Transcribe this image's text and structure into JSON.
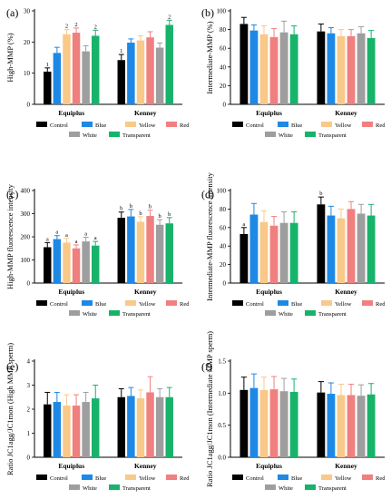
{
  "colors": {
    "Control": "#000000",
    "Blue": "#1e88e5",
    "Yellow": "#f9c98a",
    "Red": "#f08080",
    "White": "#9e9e9e",
    "Transparent": "#18b36b"
  },
  "legend": [
    "Control",
    "Blue",
    "Yellow",
    "Red",
    "White",
    "Transparent"
  ],
  "chart_data": [
    {
      "panel": "(a)",
      "type": "bar",
      "ylabel": "High-MMP (%)",
      "ylim": [
        0,
        30
      ],
      "yticks": [
        "0",
        "10",
        "20",
        "30"
      ],
      "ytickvals": [
        0,
        10,
        20,
        30
      ],
      "categories": [
        "Equiplus",
        "Kenney"
      ],
      "series": [
        {
          "name": "Control",
          "values": [
            10.5,
            14.2
          ],
          "err": [
            1.2,
            1.8
          ],
          "labels": [
            "1",
            "1"
          ]
        },
        {
          "name": "Blue",
          "values": [
            16.5,
            19.8
          ],
          "err": [
            1.8,
            1.2
          ],
          "labels": [
            "",
            ""
          ]
        },
        {
          "name": "Yellow",
          "values": [
            22.5,
            20.5
          ],
          "err": [
            1.5,
            1.5
          ],
          "labels": [
            "2",
            ""
          ]
        },
        {
          "name": "Red",
          "values": [
            23.0,
            21.5
          ],
          "err": [
            1.5,
            1.8
          ],
          "labels": [
            "2",
            ""
          ]
        },
        {
          "name": "White",
          "values": [
            17.0,
            18.2
          ],
          "err": [
            1.8,
            1.5
          ],
          "labels": [
            "",
            ""
          ]
        },
        {
          "name": "Transparent",
          "values": [
            22.0,
            25.5
          ],
          "err": [
            1.8,
            1.5
          ],
          "labels": [
            "2",
            "2"
          ]
        }
      ]
    },
    {
      "panel": "(b)",
      "type": "bar",
      "ylabel": "Intermediate-MMP (%)",
      "ylim": [
        0,
        100
      ],
      "yticks": [
        "0",
        "20",
        "40",
        "60",
        "80",
        "100"
      ],
      "ytickvals": [
        0,
        20,
        40,
        60,
        80,
        100
      ],
      "categories": [
        "Equiplus",
        "Kenney"
      ],
      "series": [
        {
          "name": "Control",
          "values": [
            86,
            78
          ],
          "err": [
            7,
            8
          ],
          "labels": [
            "",
            ""
          ]
        },
        {
          "name": "Blue",
          "values": [
            79,
            76
          ],
          "err": [
            6,
            6
          ],
          "labels": [
            "",
            ""
          ]
        },
        {
          "name": "Yellow",
          "values": [
            75,
            73
          ],
          "err": [
            9,
            7
          ],
          "labels": [
            "",
            ""
          ]
        },
        {
          "name": "Red",
          "values": [
            72,
            73
          ],
          "err": [
            9,
            7
          ],
          "labels": [
            "",
            ""
          ]
        },
        {
          "name": "White",
          "values": [
            77,
            76
          ],
          "err": [
            12,
            7
          ],
          "labels": [
            "",
            ""
          ]
        },
        {
          "name": "Transparent",
          "values": [
            75,
            71
          ],
          "err": [
            9,
            8
          ],
          "labels": [
            "",
            ""
          ]
        }
      ]
    },
    {
      "panel": "(c)",
      "type": "bar",
      "ylabel": "High-MMP fluorescence intensity",
      "ylim": [
        0,
        400
      ],
      "yticks": [
        "0",
        "100",
        "200",
        "300",
        "400"
      ],
      "ytickvals": [
        0,
        100,
        200,
        300,
        400
      ],
      "categories": [
        "Equiplus",
        "Kenney"
      ],
      "series": [
        {
          "name": "Control",
          "values": [
            155,
            282
          ],
          "err": [
            20,
            25
          ],
          "labels": [
            "a",
            "b"
          ]
        },
        {
          "name": "Blue",
          "values": [
            190,
            288
          ],
          "err": [
            15,
            30
          ],
          "labels": [
            "a",
            "b"
          ]
        },
        {
          "name": "Yellow",
          "values": [
            175,
            265
          ],
          "err": [
            18,
            22
          ],
          "labels": [
            "a",
            "b"
          ]
        },
        {
          "name": "Red",
          "values": [
            150,
            290
          ],
          "err": [
            15,
            25
          ],
          "labels": [
            "a",
            "b"
          ]
        },
        {
          "name": "White",
          "values": [
            180,
            252
          ],
          "err": [
            18,
            22
          ],
          "labels": [
            "a",
            "b"
          ]
        },
        {
          "name": "Transparent",
          "values": [
            162,
            258
          ],
          "err": [
            18,
            25
          ],
          "labels": [
            "a",
            "b"
          ]
        }
      ]
    },
    {
      "panel": "(d)",
      "type": "bar",
      "ylabel": "Intermediate-MMP fluorescence intensity",
      "ylim": [
        0,
        100
      ],
      "yticks": [
        "0",
        "20",
        "40",
        "60",
        "80",
        "100"
      ],
      "ytickvals": [
        0,
        20,
        40,
        60,
        80,
        100
      ],
      "categories": [
        "Equiplus",
        "Kenney"
      ],
      "series": [
        {
          "name": "Control",
          "values": [
            53,
            85
          ],
          "err": [
            7,
            8
          ],
          "labels": [
            "a",
            "b"
          ]
        },
        {
          "name": "Blue",
          "values": [
            74,
            73
          ],
          "err": [
            12,
            10
          ],
          "labels": [
            "",
            ""
          ]
        },
        {
          "name": "Yellow",
          "values": [
            66,
            70
          ],
          "err": [
            12,
            10
          ],
          "labels": [
            "",
            ""
          ]
        },
        {
          "name": "Red",
          "values": [
            62,
            80
          ],
          "err": [
            10,
            8
          ],
          "labels": [
            "",
            ""
          ]
        },
        {
          "name": "White",
          "values": [
            65,
            75
          ],
          "err": [
            12,
            10
          ],
          "labels": [
            "",
            ""
          ]
        },
        {
          "name": "Transparent",
          "values": [
            65,
            73
          ],
          "err": [
            12,
            12
          ],
          "labels": [
            "",
            ""
          ]
        }
      ]
    },
    {
      "panel": "(e)",
      "type": "bar",
      "ylabel": "Ratio JC1agg/JC1mon (High MMP sperm)",
      "ylim": [
        0,
        4
      ],
      "yticks": [
        "0",
        "1",
        "2",
        "3",
        "4"
      ],
      "ytickvals": [
        0,
        1,
        2,
        3,
        4
      ],
      "categories": [
        "Equiplus",
        "Kenney"
      ],
      "series": [
        {
          "name": "Control",
          "values": [
            2.2,
            2.5
          ],
          "err": [
            0.5,
            0.35
          ],
          "labels": [
            "",
            ""
          ]
        },
        {
          "name": "Blue",
          "values": [
            2.3,
            2.55
          ],
          "err": [
            0.4,
            0.35
          ],
          "labels": [
            "",
            ""
          ]
        },
        {
          "name": "Yellow",
          "values": [
            2.15,
            2.45
          ],
          "err": [
            0.45,
            0.35
          ],
          "labels": [
            "",
            ""
          ]
        },
        {
          "name": "Red",
          "values": [
            2.15,
            2.7
          ],
          "err": [
            0.45,
            0.65
          ],
          "labels": [
            "",
            ""
          ]
        },
        {
          "name": "White",
          "values": [
            2.3,
            2.5
          ],
          "err": [
            0.4,
            0.35
          ],
          "labels": [
            "",
            ""
          ]
        },
        {
          "name": "Transparent",
          "values": [
            2.45,
            2.5
          ],
          "err": [
            0.55,
            0.4
          ],
          "labels": [
            "",
            ""
          ]
        }
      ]
    },
    {
      "panel": "(f)",
      "type": "bar",
      "ylabel": "Ratio JC1agg/JC1mon (Intermediate MMP sperm)",
      "ylim": [
        0,
        1.5
      ],
      "yticks": [
        "0.0",
        "0.5",
        "1.0",
        "1.5"
      ],
      "ytickvals": [
        0,
        0.5,
        1.0,
        1.5
      ],
      "categories": [
        "Equiplus",
        "Kenney"
      ],
      "series": [
        {
          "name": "Control",
          "values": [
            1.05,
            1.01
          ],
          "err": [
            0.2,
            0.17
          ],
          "labels": [
            "",
            ""
          ]
        },
        {
          "name": "Blue",
          "values": [
            1.08,
            0.99
          ],
          "err": [
            0.22,
            0.17
          ],
          "labels": [
            "",
            ""
          ]
        },
        {
          "name": "Yellow",
          "values": [
            1.05,
            0.97
          ],
          "err": [
            0.2,
            0.17
          ],
          "labels": [
            "",
            ""
          ]
        },
        {
          "name": "Red",
          "values": [
            1.06,
            0.97
          ],
          "err": [
            0.2,
            0.17
          ],
          "labels": [
            "",
            ""
          ]
        },
        {
          "name": "White",
          "values": [
            1.03,
            0.96
          ],
          "err": [
            0.2,
            0.17
          ],
          "labels": [
            "",
            ""
          ]
        },
        {
          "name": "Transparent",
          "values": [
            1.02,
            0.98
          ],
          "err": [
            0.2,
            0.17
          ],
          "labels": [
            "",
            ""
          ]
        }
      ]
    }
  ]
}
